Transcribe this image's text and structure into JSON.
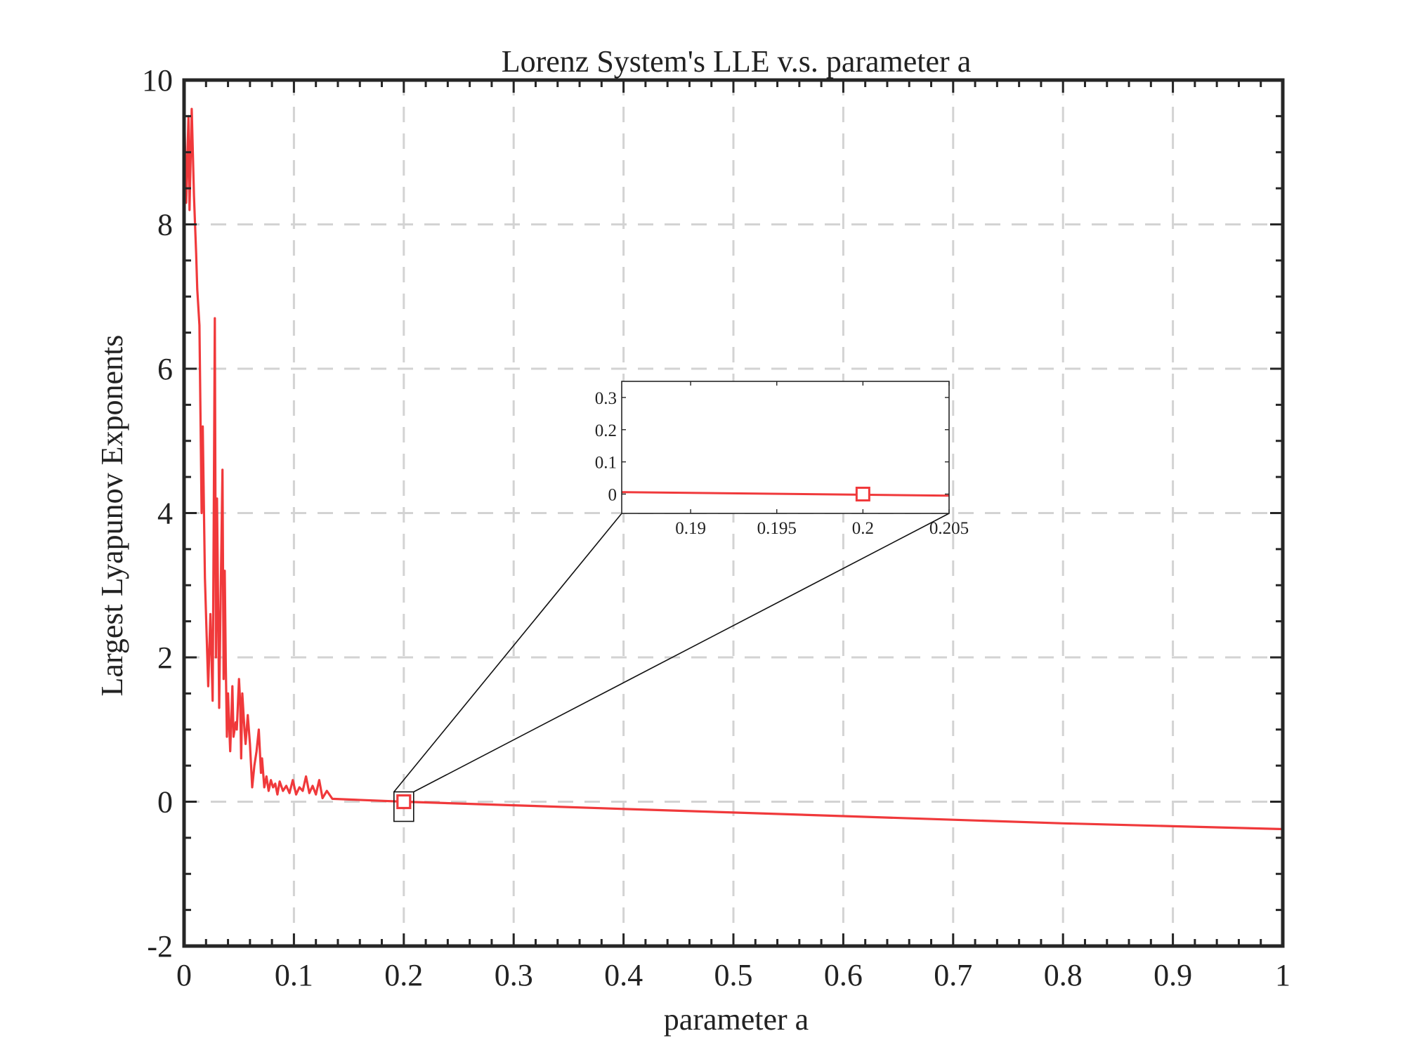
{
  "chart_data": {
    "type": "line",
    "title": "Lorenz System's LLE v.s. parameter a",
    "xlabel": "parameter a",
    "ylabel": "Largest Lyapunov Exponents",
    "xlim": [
      0,
      1
    ],
    "ylim": [
      -2,
      10
    ],
    "xticks": [
      0,
      0.1,
      0.2,
      0.3,
      0.4,
      0.5,
      0.6,
      0.7,
      0.8,
      0.9,
      1
    ],
    "xtick_labels": [
      "0",
      "0.1",
      "0.2",
      "0.3",
      "0.4",
      "0.5",
      "0.6",
      "0.7",
      "0.8",
      "0.9",
      "1"
    ],
    "yticks": [
      -2,
      0,
      2,
      4,
      6,
      8,
      10
    ],
    "ytick_labels": [
      "-2",
      "0",
      "2",
      "4",
      "6",
      "8",
      "10"
    ],
    "grid": true,
    "grid_style": "dashed",
    "line_color": "#f0393b",
    "series": [
      {
        "x": [
          0.0,
          0.002,
          0.004,
          0.005,
          0.007,
          0.009,
          0.011,
          0.012,
          0.014,
          0.016,
          0.017,
          0.019,
          0.021,
          0.022,
          0.024,
          0.026,
          0.027,
          0.028,
          0.029,
          0.03,
          0.032,
          0.033,
          0.035,
          0.036,
          0.037,
          0.038,
          0.039,
          0.04,
          0.041,
          0.042,
          0.044,
          0.045,
          0.047,
          0.048,
          0.05,
          0.051,
          0.052,
          0.053,
          0.055,
          0.056,
          0.058,
          0.06,
          0.062,
          0.064,
          0.066,
          0.068,
          0.07,
          0.071,
          0.073,
          0.075,
          0.077,
          0.079,
          0.081,
          0.083,
          0.085,
          0.087,
          0.09,
          0.093,
          0.096,
          0.099,
          0.102,
          0.105,
          0.108,
          0.111,
          0.114,
          0.117,
          0.12,
          0.123,
          0.126,
          0.13,
          0.135,
          0.2,
          0.3,
          0.4,
          0.5,
          0.6,
          0.7,
          0.8,
          0.9,
          1.0
        ],
        "y": [
          9.7,
          8.3,
          9.5,
          8.2,
          9.6,
          8.4,
          7.6,
          7.1,
          6.6,
          4.0,
          5.2,
          3.1,
          2.1,
          1.6,
          2.6,
          1.4,
          3.8,
          6.7,
          2.0,
          4.2,
          1.3,
          2.5,
          4.6,
          1.7,
          3.2,
          1.9,
          0.9,
          1.5,
          1.1,
          0.7,
          1.6,
          0.9,
          1.1,
          1.0,
          1.7,
          1.4,
          0.6,
          1.5,
          1.0,
          0.8,
          1.2,
          0.8,
          0.2,
          0.5,
          0.7,
          1.0,
          0.4,
          0.6,
          0.2,
          0.35,
          0.15,
          0.3,
          0.2,
          0.25,
          0.1,
          0.28,
          0.15,
          0.22,
          0.12,
          0.3,
          0.1,
          0.2,
          0.15,
          0.35,
          0.12,
          0.22,
          0.1,
          0.3,
          0.05,
          0.15,
          0.04,
          0.0,
          -0.05,
          -0.1,
          -0.15,
          -0.2,
          -0.25,
          -0.3,
          -0.34,
          -0.38
        ]
      }
    ],
    "marker": {
      "x": 0.2,
      "y": 0.0,
      "shape": "square"
    },
    "inset": {
      "xlim": [
        0.186,
        0.205
      ],
      "ylim": [
        -0.06,
        0.35
      ],
      "xticks": [
        0.19,
        0.195,
        0.2,
        0.205
      ],
      "xtick_labels": [
        "0.19",
        "0.195",
        "0.2",
        "0.205"
      ],
      "yticks": [
        0,
        0.1,
        0.2,
        0.3
      ],
      "ytick_labels": [
        "0",
        "0.1",
        "0.2",
        "0.3"
      ],
      "x": [
        0.186,
        0.205
      ],
      "y": [
        0.006,
        -0.005
      ]
    }
  }
}
